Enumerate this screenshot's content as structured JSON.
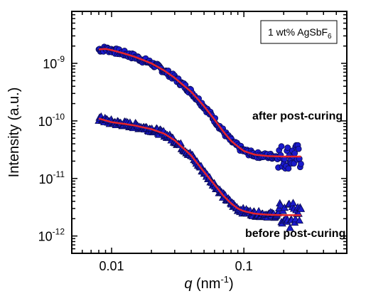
{
  "chart_data": {
    "type": "scatter",
    "xscale": "log",
    "yscale": "log",
    "xlim": [
      0.005,
      0.6
    ],
    "ylim": [
      5e-13,
      8e-09
    ],
    "grid": false,
    "xlabel": {
      "var": "q",
      "unit_prefix": " (nm",
      "unit_exp": "-1",
      "unit_suffix": ")"
    },
    "ylabel": "Intensity (a.u.)",
    "x_ticks": [
      {
        "value": 0.01,
        "label": "0.01"
      },
      {
        "value": 0.1,
        "label": "0.1"
      }
    ],
    "y_ticks": [
      {
        "value": 1e-09,
        "base": "10",
        "exp": "-9"
      },
      {
        "value": 1e-10,
        "base": "10",
        "exp": "-10"
      },
      {
        "value": 1e-11,
        "base": "10",
        "exp": "-11"
      },
      {
        "value": 1e-12,
        "base": "10",
        "exp": "-12"
      }
    ],
    "legend": {
      "text": "1 wt% AgSbF",
      "subscript": "6",
      "placement": "top-right"
    },
    "annotations": [
      {
        "text": "after post-curing",
        "near_series": "after post-curing"
      },
      {
        "text": "before post-curing",
        "near_series": "before post-curing"
      }
    ],
    "series": [
      {
        "name": "after post-curing",
        "marker": "circle",
        "color": "#1a1acd",
        "fit_color": "#e8242a",
        "x_range": [
          0.008,
          0.27
        ],
        "points": [
          [
            0.008,
            1.75e-09
          ],
          [
            0.009,
            1.78e-09
          ],
          [
            0.01,
            1.7e-09
          ],
          [
            0.012,
            1.52e-09
          ],
          [
            0.015,
            1.3e-09
          ],
          [
            0.02,
            1e-09
          ],
          [
            0.025,
            7.5e-10
          ],
          [
            0.03,
            5.6e-10
          ],
          [
            0.04,
            3.2e-10
          ],
          [
            0.05,
            1.8e-10
          ],
          [
            0.06,
            1.05e-10
          ],
          [
            0.07,
            6.5e-11
          ],
          [
            0.08,
            4.5e-11
          ],
          [
            0.09,
            3.6e-11
          ],
          [
            0.1,
            3e-11
          ],
          [
            0.12,
            2.6e-11
          ],
          [
            0.15,
            2.45e-11
          ],
          [
            0.2,
            2.4e-11
          ],
          [
            0.27,
            2.4e-11
          ]
        ]
      },
      {
        "name": "before post-curing",
        "marker": "triangle",
        "color": "#1a1acd",
        "fit_color": "#e8242a",
        "x_range": [
          0.008,
          0.27
        ],
        "points": [
          [
            0.008,
            1.1e-10
          ],
          [
            0.01,
            9.5e-11
          ],
          [
            0.012,
            9e-11
          ],
          [
            0.015,
            8.3e-11
          ],
          [
            0.02,
            7.2e-11
          ],
          [
            0.025,
            6e-11
          ],
          [
            0.03,
            4.6e-11
          ],
          [
            0.04,
            2.5e-11
          ],
          [
            0.05,
            1.3e-11
          ],
          [
            0.06,
            7.8e-12
          ],
          [
            0.07,
            5e-12
          ],
          [
            0.08,
            3.7e-12
          ],
          [
            0.09,
            3e-12
          ],
          [
            0.1,
            2.7e-12
          ],
          [
            0.12,
            2.45e-12
          ],
          [
            0.15,
            2.35e-12
          ],
          [
            0.2,
            2.3e-12
          ],
          [
            0.27,
            2.3e-12
          ]
        ]
      }
    ]
  }
}
